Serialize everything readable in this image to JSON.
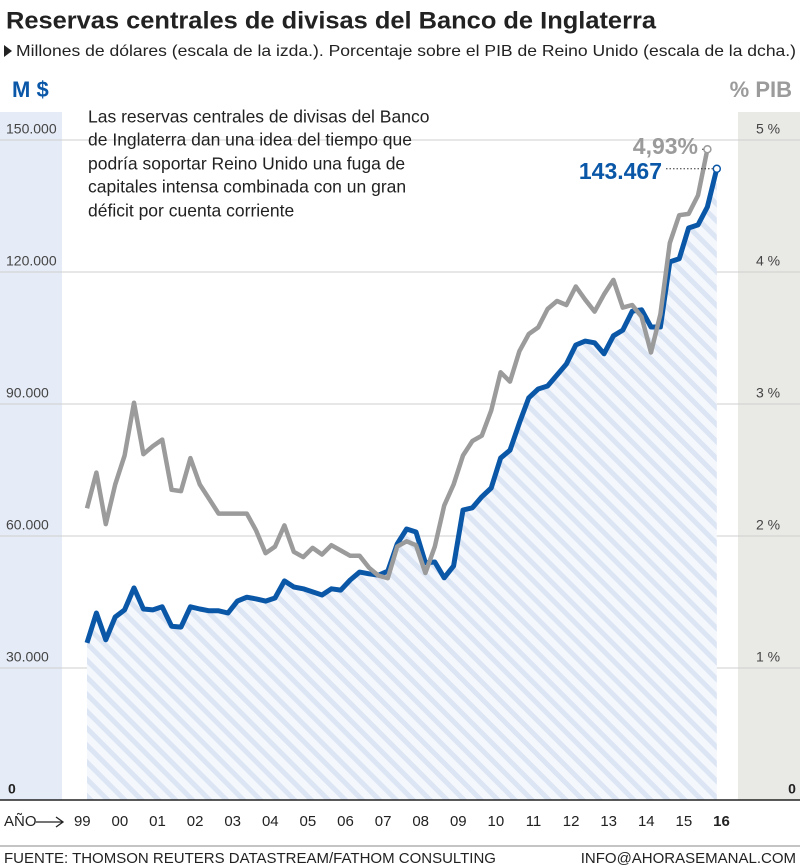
{
  "chart_data": {
    "type": "line",
    "title": "Reservas centrales de divisas del Banco de Inglaterra",
    "subtitle": "Millones de dólares (escala de la izda.). Porcentaje sobre el PIB de Reino Unido (escala de la dcha.)",
    "y_label": "M $",
    "y2_label": "% PIB",
    "x_label": "AÑO",
    "annotation": [
      "Las reservas centrales de divisas del Banco",
      "de Inglaterra dan una idea del tiempo que",
      "podría soportar Reino Unido una fuga de",
      "capitales intensa combinada con un gran",
      "déficit por cuenta corriente"
    ],
    "source": "FUENTE: THOMSON REUTERS DATASTREAM/FATHOM CONSULTING",
    "credit": "INFO@AHORASEMANAL.COM",
    "x": [
      1999.125,
      1999.375,
      1999.625,
      1999.875,
      2000.125,
      2000.375,
      2000.625,
      2000.875,
      2001.125,
      2001.375,
      2001.625,
      2001.875,
      2002.125,
      2002.375,
      2002.625,
      2002.875,
      2003.125,
      2003.375,
      2003.625,
      2003.875,
      2004.125,
      2004.375,
      2004.625,
      2004.875,
      2005.125,
      2005.375,
      2005.625,
      2005.875,
      2006.125,
      2006.375,
      2006.625,
      2006.875,
      2007.125,
      2007.375,
      2007.625,
      2007.875,
      2008.125,
      2008.375,
      2008.625,
      2008.875,
      2009.125,
      2009.375,
      2009.625,
      2009.875,
      2010.125,
      2010.375,
      2010.625,
      2010.875,
      2011.125,
      2011.375,
      2011.625,
      2011.875,
      2012.125,
      2012.375,
      2012.625,
      2012.875,
      2013.125,
      2013.375,
      2013.625,
      2013.875,
      2014.125,
      2014.375,
      2014.625,
      2014.875,
      2015.125,
      2015.375,
      2015.625,
      2015.875
    ],
    "xlim": [
      1998.995,
      2016.5
    ],
    "xticks": [
      {
        "value": 1999,
        "label": "99"
      },
      {
        "value": 2000,
        "label": "00"
      },
      {
        "value": 2001,
        "label": "01"
      },
      {
        "value": 2002,
        "label": "02"
      },
      {
        "value": 2003,
        "label": "03"
      },
      {
        "value": 2004,
        "label": "04"
      },
      {
        "value": 2005,
        "label": "05"
      },
      {
        "value": 2006,
        "label": "06"
      },
      {
        "value": 2007,
        "label": "07"
      },
      {
        "value": 2008,
        "label": "08"
      },
      {
        "value": 2009,
        "label": "09"
      },
      {
        "value": 2010,
        "label": "10"
      },
      {
        "value": 2011,
        "label": "11"
      },
      {
        "value": 2012,
        "label": "12"
      },
      {
        "value": 2013,
        "label": "13"
      },
      {
        "value": 2014,
        "label": "14"
      },
      {
        "value": 2015,
        "label": "15"
      },
      {
        "value": 2016,
        "label": "16"
      }
    ],
    "ylim": [
      0,
      150000
    ],
    "yticks": [
      0,
      {
        "value": 30000,
        "label": "30.000"
      },
      {
        "value": 60000,
        "label": "60.000"
      },
      {
        "value": 90000,
        "label": "90.000"
      },
      {
        "value": 120000,
        "label": "120.000"
      },
      {
        "value": 150000,
        "label": "150.000"
      }
    ],
    "y2lim": [
      0,
      5
    ],
    "y2ticks": [
      0,
      {
        "value": 1,
        "label": "1 %"
      },
      {
        "value": 2,
        "label": "2 %"
      },
      {
        "value": 3,
        "label": "3 %"
      },
      {
        "value": 4,
        "label": "4 %"
      },
      {
        "value": 5,
        "label": "5 %"
      }
    ],
    "grid": true,
    "series": [
      {
        "name": "Millones de dólares",
        "color": "#0a57a8",
        "axis": "y",
        "values": [
          35700,
          42500,
          36400,
          41600,
          43200,
          48200,
          43400,
          43200,
          43900,
          39500,
          39300,
          43900,
          43400,
          43000,
          43000,
          42500,
          45200,
          46100,
          45700,
          45200,
          45900,
          49800,
          48400,
          48000,
          47300,
          46600,
          48000,
          47700,
          50000,
          51800,
          51400,
          51100,
          52000,
          58200,
          61600,
          60900,
          53900,
          54100,
          50500,
          53200,
          65900,
          66400,
          68900,
          70900,
          77700,
          79500,
          85700,
          91400,
          93400,
          94100,
          96600,
          99100,
          103400,
          104300,
          103900,
          101400,
          105500,
          106800,
          111100,
          111400,
          107500,
          107500,
          122300,
          123000,
          130000,
          130700,
          134800,
          143467
        ],
        "value_labels": [
          null,
          null,
          null,
          null,
          null,
          null,
          null,
          null,
          null,
          null,
          null,
          null,
          null,
          null,
          null,
          null,
          null,
          null,
          null,
          null,
          null,
          null,
          null,
          null,
          null,
          null,
          null,
          null,
          null,
          null,
          null,
          null,
          null,
          null,
          null,
          null,
          null,
          null,
          null,
          null,
          null,
          null,
          null,
          null,
          null,
          null,
          null,
          null,
          null,
          null,
          null,
          null,
          null,
          null,
          null,
          null,
          null,
          null,
          null,
          null,
          null,
          null,
          null,
          null,
          null,
          null,
          null,
          "143.467"
        ]
      },
      {
        "name": "Porcentaje sobre el PIB",
        "color": "#9b9b9b",
        "axis": "y2",
        "values": [
          2.21,
          2.48,
          2.09,
          2.39,
          2.61,
          3.01,
          2.62,
          2.68,
          2.73,
          2.35,
          2.34,
          2.59,
          2.39,
          2.28,
          2.17,
          2.17,
          2.17,
          2.17,
          2.04,
          1.87,
          1.92,
          2.08,
          1.88,
          1.84,
          1.91,
          1.86,
          1.93,
          1.89,
          1.85,
          1.85,
          1.76,
          1.7,
          1.68,
          1.92,
          1.96,
          1.93,
          1.72,
          1.92,
          2.23,
          2.39,
          2.61,
          2.72,
          2.76,
          2.95,
          3.24,
          3.17,
          3.4,
          3.53,
          3.58,
          3.72,
          3.78,
          3.75,
          3.89,
          3.79,
          3.7,
          3.83,
          3.94,
          3.73,
          3.75,
          3.66,
          3.39,
          3.68,
          4.22,
          4.43,
          4.44,
          4.58,
          4.93,
          null
        ],
        "value_labels": [
          null,
          null,
          null,
          null,
          null,
          null,
          null,
          null,
          null,
          null,
          null,
          null,
          null,
          null,
          null,
          null,
          null,
          null,
          null,
          null,
          null,
          null,
          null,
          null,
          null,
          null,
          null,
          null,
          null,
          null,
          null,
          null,
          null,
          null,
          null,
          null,
          null,
          null,
          null,
          null,
          null,
          null,
          null,
          null,
          null,
          null,
          null,
          null,
          null,
          null,
          null,
          null,
          null,
          null,
          null,
          null,
          null,
          null,
          null,
          null,
          null,
          null,
          null,
          null,
          null,
          null,
          "4,93%",
          null
        ]
      }
    ]
  }
}
